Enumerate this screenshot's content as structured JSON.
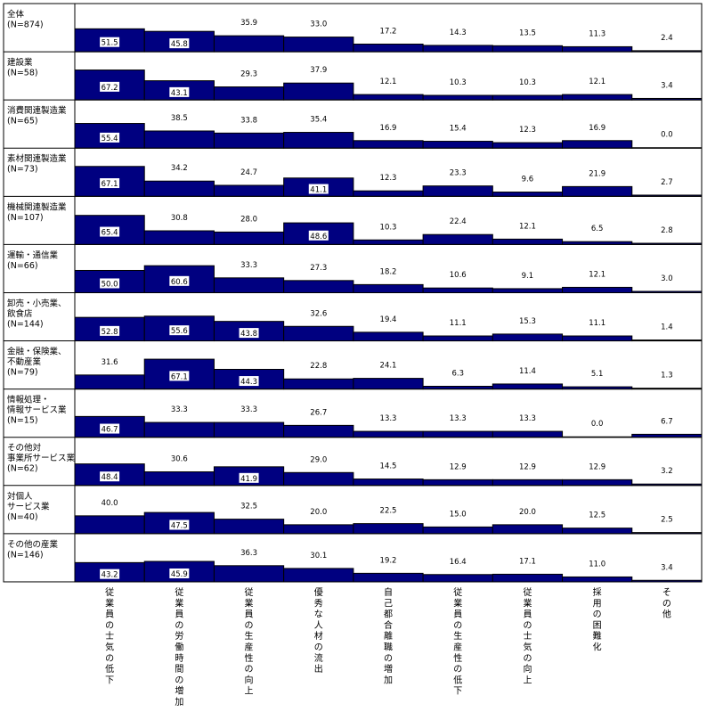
{
  "chart_data": {
    "type": "bar",
    "layout": "small-multiples",
    "ylim": [
      0,
      100
    ],
    "categories": [
      "従業員の士気の低下",
      "従業員の労働時間の増加",
      "従業員の生産性の向上",
      "優秀な人材の流出",
      "自己都合離職の増加",
      "従業員の生産性の低下",
      "従業員の士気の向上",
      "採用の困難化",
      "その他"
    ],
    "rows": [
      {
        "label": [
          "全体",
          "(N=874)"
        ],
        "values": [
          51.5,
          45.8,
          35.9,
          33.0,
          17.2,
          14.3,
          13.5,
          11.3,
          2.4
        ]
      },
      {
        "label": [
          "建設業",
          "(N=58)"
        ],
        "values": [
          67.2,
          43.1,
          29.3,
          37.9,
          12.1,
          10.3,
          10.3,
          12.1,
          3.4
        ]
      },
      {
        "label": [
          "消費関連製造業",
          "(N=65)"
        ],
        "values": [
          55.4,
          38.5,
          33.8,
          35.4,
          16.9,
          15.4,
          12.3,
          16.9,
          0.0
        ]
      },
      {
        "label": [
          "素材関連製造業",
          "(N=73)"
        ],
        "values": [
          67.1,
          34.2,
          24.7,
          41.1,
          12.3,
          23.3,
          9.6,
          21.9,
          2.7
        ]
      },
      {
        "label": [
          "機械関連製造業",
          "(N=107)"
        ],
        "values": [
          65.4,
          30.8,
          28.0,
          48.6,
          10.3,
          22.4,
          12.1,
          6.5,
          2.8
        ]
      },
      {
        "label": [
          "運輸・通信業",
          "(N=66)"
        ],
        "values": [
          50.0,
          60.6,
          33.3,
          27.3,
          18.2,
          10.6,
          9.1,
          12.1,
          3.0
        ]
      },
      {
        "label": [
          "卸売・小売業、",
          "飲食店",
          "(N=144)"
        ],
        "values": [
          52.8,
          55.6,
          43.8,
          32.6,
          19.4,
          11.1,
          15.3,
          11.1,
          1.4
        ]
      },
      {
        "label": [
          "金融・保険業、",
          "不動産業",
          "(N=79)"
        ],
        "values": [
          31.6,
          67.1,
          44.3,
          22.8,
          24.1,
          6.3,
          11.4,
          5.1,
          1.3
        ]
      },
      {
        "label": [
          "情報処理・",
          "情報サービス業",
          "(N=15)"
        ],
        "values": [
          46.7,
          33.3,
          33.3,
          26.7,
          13.3,
          13.3,
          13.3,
          0.0,
          6.7
        ]
      },
      {
        "label": [
          "その他対",
          "事業所サービス業",
          "(N=62)"
        ],
        "values": [
          48.4,
          30.6,
          41.9,
          29.0,
          14.5,
          12.9,
          12.9,
          12.9,
          3.2
        ]
      },
      {
        "label": [
          "対個人",
          "サービス業",
          "(N=40)"
        ],
        "values": [
          40.0,
          47.5,
          32.5,
          20.0,
          22.5,
          15.0,
          20.0,
          12.5,
          2.5
        ]
      },
      {
        "label": [
          "その他の産業",
          "(N=146)"
        ],
        "values": [
          43.2,
          45.9,
          36.3,
          30.1,
          19.2,
          16.4,
          17.1,
          11.0,
          3.4
        ]
      }
    ]
  },
  "colors": {
    "bar": "#000080",
    "label_box": "#ffffff",
    "border": "#000000"
  }
}
